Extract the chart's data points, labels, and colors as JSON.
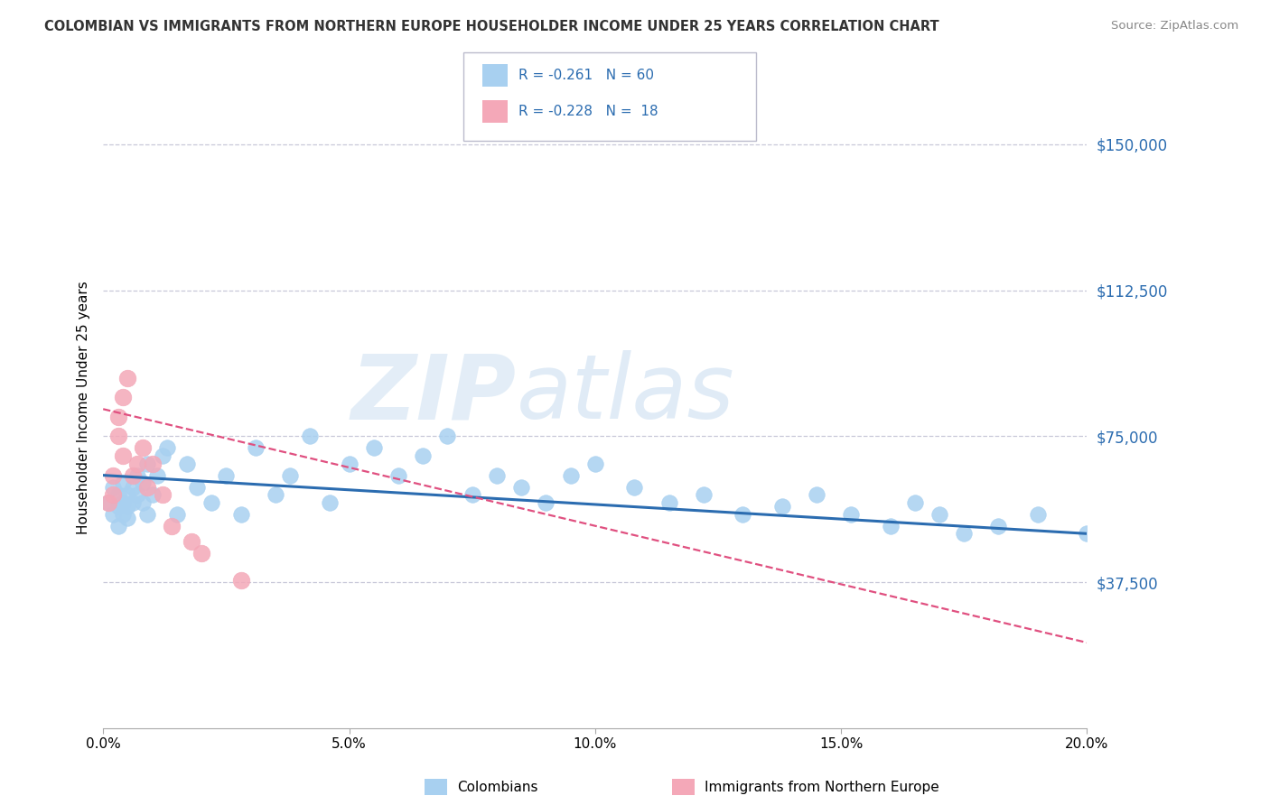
{
  "title": "COLOMBIAN VS IMMIGRANTS FROM NORTHERN EUROPE HOUSEHOLDER INCOME UNDER 25 YEARS CORRELATION CHART",
  "source": "Source: ZipAtlas.com",
  "ylabel": "Householder Income Under 25 years",
  "xlim": [
    0.0,
    0.2
  ],
  "ylim": [
    0,
    165000
  ],
  "yticks": [
    0,
    37500,
    75000,
    112500,
    150000
  ],
  "ytick_labels": [
    "",
    "$37,500",
    "$75,000",
    "$112,500",
    "$150,000"
  ],
  "xticks": [
    0.0,
    0.05,
    0.1,
    0.15,
    0.2
  ],
  "xtick_labels": [
    "0.0%",
    "5.0%",
    "10.0%",
    "15.0%",
    "20.0%"
  ],
  "blue_color": "#a8d0f0",
  "pink_color": "#f4a8b8",
  "blue_line_color": "#2b6cb0",
  "pink_line_color": "#e05080",
  "legend_R1": "-0.261",
  "legend_N1": "60",
  "legend_R2": "-0.228",
  "legend_N2": "18",
  "watermark_zip": "ZIP",
  "watermark_atlas": "atlas",
  "background_color": "#ffffff",
  "grid_color": "#c8c8d8",
  "blue_scatter_x": [
    0.001,
    0.002,
    0.002,
    0.003,
    0.003,
    0.003,
    0.004,
    0.004,
    0.004,
    0.005,
    0.005,
    0.005,
    0.006,
    0.006,
    0.007,
    0.007,
    0.008,
    0.008,
    0.009,
    0.009,
    0.01,
    0.011,
    0.012,
    0.013,
    0.015,
    0.017,
    0.019,
    0.022,
    0.025,
    0.028,
    0.031,
    0.035,
    0.038,
    0.042,
    0.046,
    0.05,
    0.055,
    0.06,
    0.065,
    0.07,
    0.075,
    0.08,
    0.085,
    0.09,
    0.095,
    0.1,
    0.108,
    0.115,
    0.122,
    0.13,
    0.138,
    0.145,
    0.152,
    0.16,
    0.165,
    0.17,
    0.175,
    0.182,
    0.19,
    0.2
  ],
  "blue_scatter_y": [
    58000,
    55000,
    62000,
    60000,
    57000,
    52000,
    63000,
    58000,
    55000,
    60000,
    57000,
    54000,
    62000,
    58000,
    65000,
    60000,
    63000,
    58000,
    68000,
    55000,
    60000,
    65000,
    70000,
    72000,
    55000,
    68000,
    62000,
    58000,
    65000,
    55000,
    72000,
    60000,
    65000,
    75000,
    58000,
    68000,
    72000,
    65000,
    70000,
    75000,
    60000,
    65000,
    62000,
    58000,
    65000,
    68000,
    62000,
    58000,
    60000,
    55000,
    57000,
    60000,
    55000,
    52000,
    58000,
    55000,
    50000,
    52000,
    55000,
    50000
  ],
  "pink_scatter_x": [
    0.001,
    0.002,
    0.002,
    0.003,
    0.003,
    0.004,
    0.004,
    0.005,
    0.006,
    0.007,
    0.008,
    0.009,
    0.01,
    0.012,
    0.014,
    0.018,
    0.02,
    0.028
  ],
  "pink_scatter_y": [
    58000,
    65000,
    60000,
    75000,
    80000,
    85000,
    70000,
    90000,
    65000,
    68000,
    72000,
    62000,
    68000,
    60000,
    52000,
    48000,
    45000,
    38000
  ],
  "blue_line_x0": 0.0,
  "blue_line_x1": 0.2,
  "blue_line_y0": 65000,
  "blue_line_y1": 50000,
  "pink_line_x0": 0.0,
  "pink_line_x1": 0.2,
  "pink_line_y0": 82000,
  "pink_line_y1": 22000
}
